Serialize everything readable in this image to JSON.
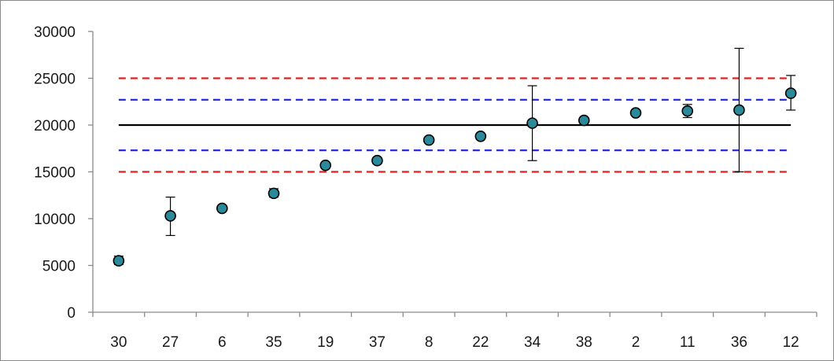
{
  "chart_data": {
    "type": "scatter",
    "categories": [
      "30",
      "27",
      "6",
      "35",
      "19",
      "37",
      "8",
      "22",
      "34",
      "38",
      "2",
      "11",
      "36",
      "12"
    ],
    "values": [
      5500,
      10300,
      11100,
      12700,
      15700,
      16200,
      18400,
      18800,
      20200,
      20500,
      21300,
      21500,
      21600,
      23400
    ],
    "error_low": [
      5100,
      8200,
      11100,
      12300,
      15700,
      16200,
      18400,
      18800,
      16200,
      20500,
      21300,
      20800,
      15000,
      21600
    ],
    "error_high": [
      6000,
      12300,
      11100,
      13200,
      15700,
      16200,
      18400,
      18800,
      24200,
      20500,
      21300,
      22200,
      28200,
      25300
    ],
    "ylim": [
      0,
      30000
    ],
    "yticks": [
      "0",
      "5000",
      "10000",
      "15000",
      "20000",
      "25000",
      "30000"
    ],
    "reference_lines": [
      {
        "y": 20000,
        "color": "#000000",
        "style": "solid"
      },
      {
        "y": 22700,
        "color": "#2d2de0",
        "style": "dashed"
      },
      {
        "y": 17300,
        "color": "#2d2de0",
        "style": "dashed"
      },
      {
        "y": 25000,
        "color": "#e02020",
        "style": "dashed"
      },
      {
        "y": 15000,
        "color": "#e02020",
        "style": "dashed"
      }
    ],
    "marker_color": "#2a8a9a",
    "grid": false,
    "legend": "none"
  }
}
